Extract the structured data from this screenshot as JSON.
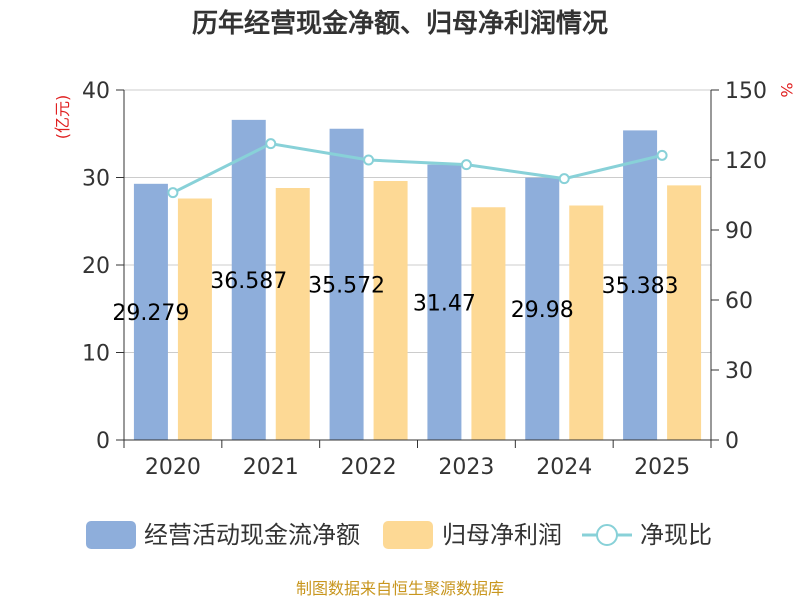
{
  "chart_data": {
    "type": "bar",
    "title": "历年经营现金净额、归母净利润情况",
    "categories": [
      "2020",
      "2021",
      "2022",
      "2023",
      "2024",
      "2025"
    ],
    "series": [
      {
        "name": "经营活动现金流净额",
        "type": "bar",
        "axis": "left",
        "color": "#8eaedb",
        "values": [
          29.279,
          36.587,
          35.572,
          31.47,
          29.98,
          35.383
        ],
        "labels": [
          "29.279",
          "36.587",
          "35.572",
          "31.47",
          "29.98",
          "35.383"
        ]
      },
      {
        "name": "归母净利润",
        "type": "bar",
        "axis": "left",
        "color": "#fdd995",
        "values": [
          27.6,
          28.8,
          29.6,
          26.6,
          26.8,
          29.1
        ]
      },
      {
        "name": "净现比",
        "type": "line",
        "axis": "right",
        "color": "#88d1d8",
        "values": [
          106,
          127,
          120,
          118,
          112,
          122
        ]
      }
    ],
    "y_left": {
      "unit": "(亿元)",
      "ylim": [
        0,
        40
      ],
      "ticks": [
        0,
        10,
        20,
        30,
        40
      ]
    },
    "y_right": {
      "unit": "%",
      "ylim": [
        0,
        150
      ],
      "ticks": [
        0,
        30,
        60,
        90,
        120,
        150
      ]
    },
    "grid": true,
    "legend": "bottom",
    "source": "制图数据来自恒生聚源数据库"
  }
}
